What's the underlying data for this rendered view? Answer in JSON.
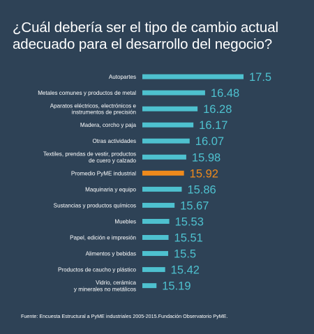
{
  "header": {
    "title_line1": "¿Cuál debería ser el tipo de cambio actual",
    "title_line2": "adecuado para el desarrollo del negocio?"
  },
  "footer": {
    "source": "Fuente: Encuesta Estructural a PyME industriales 2005-2015.Fundación Observatorio PyME."
  },
  "colors": {
    "background": "#2e4256",
    "bar": "#4ec1cf",
    "highlight": "#ef8a1c",
    "text": "#ffffff"
  },
  "chart_data": {
    "type": "bar",
    "orientation": "horizontal",
    "title": "¿Cuál debería ser el tipo de cambio actual adecuado para el desarrollo del negocio?",
    "xlabel": "",
    "ylabel": "",
    "grid": false,
    "legend": "none",
    "highlighted_category": "Promedio PyME industrial",
    "categories": [
      [
        "Autopartes"
      ],
      [
        "Metales comunes y productos de metal"
      ],
      [
        "Aparatos eléctricos, electrónicos e",
        "instrumentos de precisión"
      ],
      [
        "Madera, corcho y paja"
      ],
      [
        "Otras actividades"
      ],
      [
        "Textiles, prendas de vestir, productos",
        "de cuero y calzado"
      ],
      [
        "Promedio PyME industrial"
      ],
      [
        "Maquinaria y equipo"
      ],
      [
        "Sustancias y productos químicos"
      ],
      [
        "Muebles"
      ],
      [
        "Papel, edición e impresión"
      ],
      [
        "Alimentos y bebidas"
      ],
      [
        "Productos de caucho y plástico"
      ],
      [
        "Vidrio, cerámica",
        "y minerales no metálicos"
      ]
    ],
    "values": [
      "17.5",
      "16.48",
      "16.28",
      "16.17",
      "16.07",
      "15.98",
      "15.92",
      "15.86",
      "15.67",
      "15.53",
      "15.51",
      "15.5",
      "15.42",
      "15.19"
    ]
  }
}
